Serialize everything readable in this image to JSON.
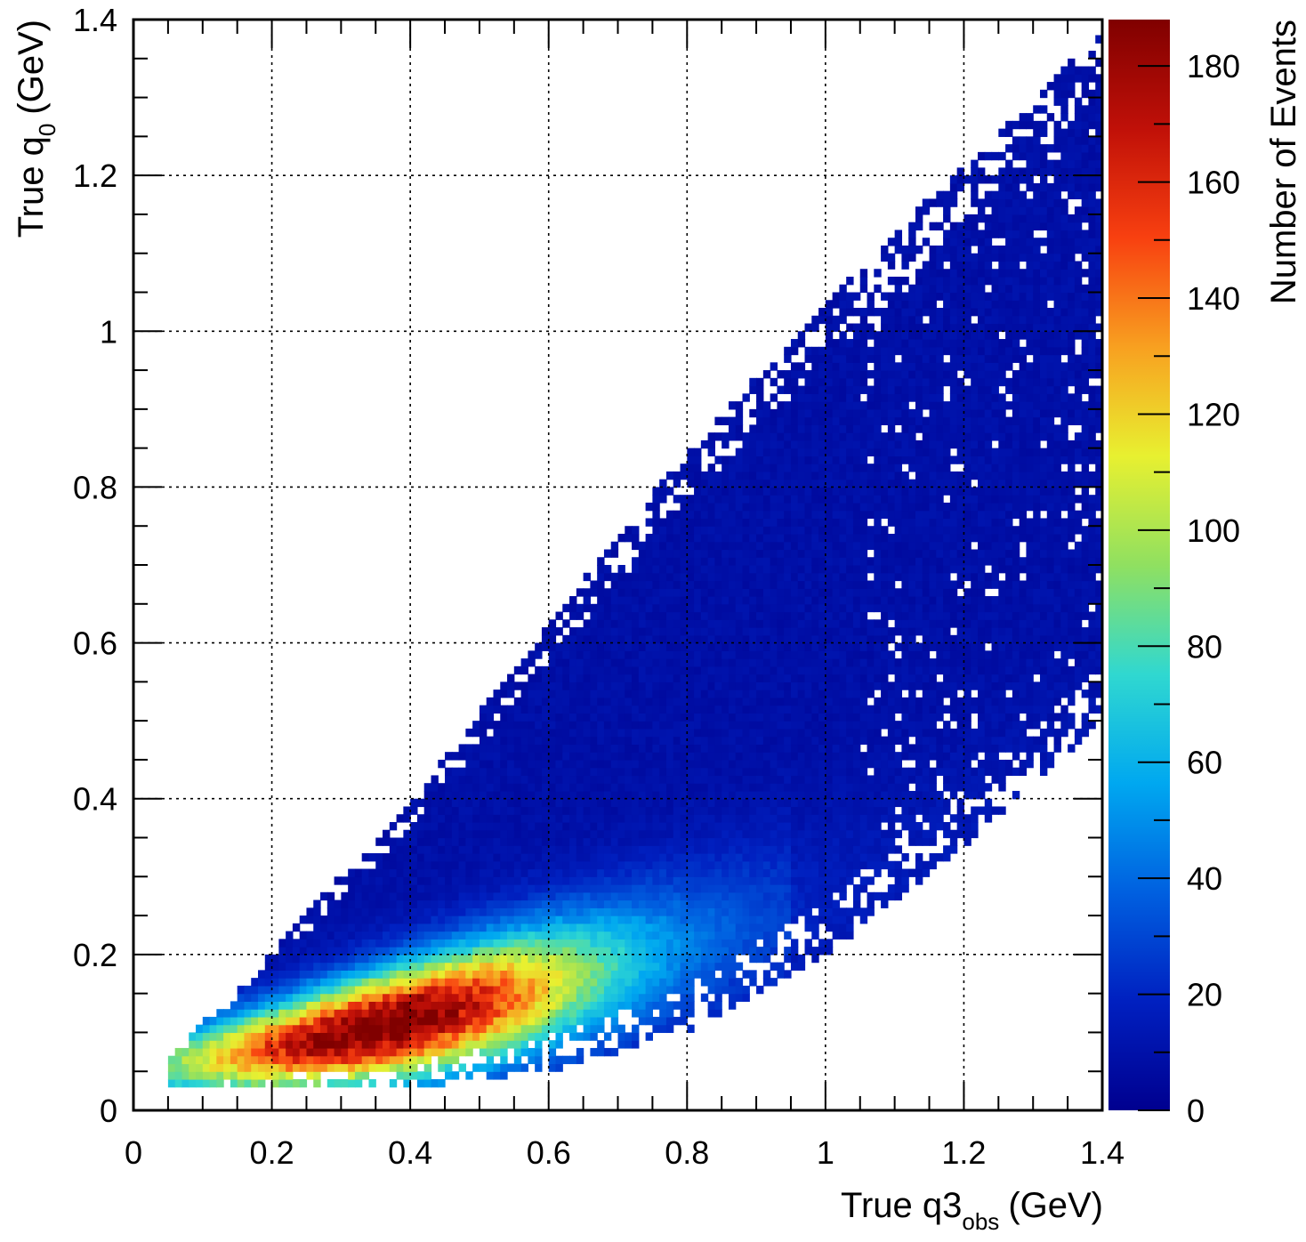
{
  "chart_data": {
    "type": "heatmap",
    "title": "",
    "xlabel": "True q3",
    "xlabel_subscript": "obs",
    "xlabel_unit": "(GeV)",
    "ylabel": "True q",
    "ylabel_subscript": "0",
    "ylabel_unit": "(GeV)",
    "zlabel": "Number of Events",
    "xlim": [
      0,
      1.4
    ],
    "ylim": [
      0,
      1.4
    ],
    "zlim": [
      0,
      188
    ],
    "x_ticks": [
      "0",
      "0.2",
      "0.4",
      "0.6",
      "0.8",
      "1",
      "1.2",
      "1.4"
    ],
    "y_ticks": [
      "0",
      "0.2",
      "0.4",
      "0.6",
      "0.8",
      "1",
      "1.2",
      "1.4"
    ],
    "z_ticks": [
      "0",
      "20",
      "40",
      "60",
      "80",
      "100",
      "120",
      "140",
      "160",
      "180"
    ],
    "grid": true,
    "colormap": [
      "#00008f",
      "#0020c0",
      "#0060e0",
      "#00a8f0",
      "#30d8d0",
      "#90e060",
      "#e8f030",
      "#f8a020",
      "#f84010",
      "#c01008",
      "#800000"
    ],
    "data_extent": {
      "x_range": [
        0.05,
        1.4
      ],
      "q0_min_at_x": [
        [
          0.05,
          0.03
        ],
        [
          0.4,
          0.03
        ],
        [
          0.6,
          0.05
        ],
        [
          0.8,
          0.1
        ],
        [
          1.0,
          0.2
        ],
        [
          1.2,
          0.34
        ],
        [
          1.4,
          0.5
        ]
      ],
      "q0_max_at_x": [
        [
          0.05,
          0.06
        ],
        [
          0.2,
          0.2
        ],
        [
          0.4,
          0.39
        ],
        [
          0.6,
          0.62
        ],
        [
          0.8,
          0.84
        ],
        [
          1.0,
          1.03
        ],
        [
          1.2,
          1.21
        ],
        [
          1.4,
          1.38
        ]
      ],
      "peak": {
        "x": 0.36,
        "y": 0.09,
        "value": 188
      }
    }
  }
}
